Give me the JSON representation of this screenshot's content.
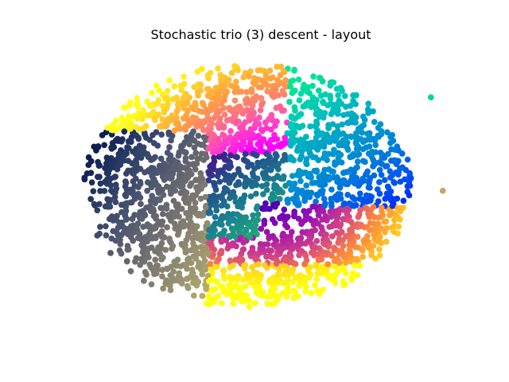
{
  "chart_data": {
    "type": "scatter",
    "title": "Stochastic trio (3) descent - layout",
    "axes_visible": false,
    "xlim": [
      -4.5,
      4.5
    ],
    "ylim": [
      -3.3,
      3.3
    ],
    "point_count": 2600,
    "point_radius_data": 0.07,
    "colormap": "mixed-gist_ncar-cividis",
    "regions": [
      {
        "name": "left-lobe",
        "color_range": [
          "#1d2c5a",
          "#e8d244"
        ]
      },
      {
        "name": "upper-arc",
        "color_range": [
          "#ffff00",
          "#ff00ff"
        ]
      },
      {
        "name": "upper-right-lobe",
        "color_range": [
          "#00e08c",
          "#0000ff"
        ]
      },
      {
        "name": "center-fan",
        "color_range": [
          "#3a0a80",
          "#9cf040"
        ]
      },
      {
        "name": "lower-arc",
        "color_range": [
          "#2200aa",
          "#ffea00"
        ]
      }
    ],
    "outliers": [
      {
        "x": 3.88,
        "y": 2.15,
        "color": "#00d890"
      },
      {
        "x": 4.15,
        "y": 0.05,
        "color": "#c2a85a"
      }
    ]
  }
}
